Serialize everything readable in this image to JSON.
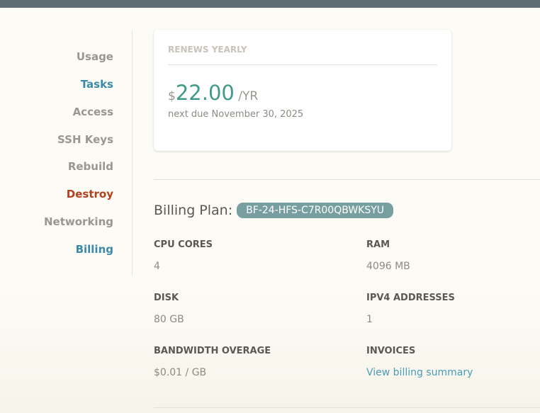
{
  "sidebar": {
    "items": [
      {
        "label": "Usage"
      },
      {
        "label": "Tasks"
      },
      {
        "label": "Access"
      },
      {
        "label": "SSH Keys"
      },
      {
        "label": "Rebuild"
      },
      {
        "label": "Destroy"
      },
      {
        "label": "Networking"
      },
      {
        "label": "Billing"
      }
    ],
    "active": "Billing"
  },
  "renewal": {
    "title": "RENEWS YEARLY",
    "currency": "$",
    "amount": "22.00",
    "period": "/YR",
    "next_due": "next due November 30, 2025"
  },
  "plan": {
    "label": "Billing Plan:",
    "id": "BF-24-HFS-C7R00QBWKSYU"
  },
  "specs": [
    {
      "label": "CPU CORES",
      "value": "4"
    },
    {
      "label": "RAM",
      "value": "4096 MB"
    },
    {
      "label": "DISK",
      "value": "80 GB"
    },
    {
      "label": "IPV4 ADDRESSES",
      "value": "1"
    },
    {
      "label": "BANDWIDTH OVERAGE",
      "value": "$0.01 / GB"
    },
    {
      "label": "INVOICES",
      "value": "View billing summary"
    }
  ],
  "colors": {
    "accent": "#3a8aa8",
    "danger": "#b2401e",
    "price": "#3f9a87",
    "badge": "#789fa0",
    "topbar": "#5f6e73"
  }
}
